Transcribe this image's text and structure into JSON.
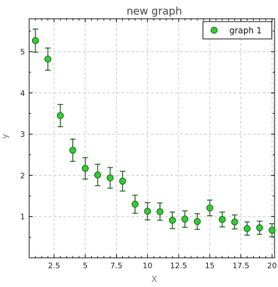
{
  "chart_data": {
    "type": "scatter",
    "title": "new graph",
    "xlabel": "X",
    "ylabel": "y",
    "xlim": [
      0.5,
      20.2
    ],
    "ylim": [
      0,
      5.8
    ],
    "x_ticks": [
      2.5,
      5,
      7.5,
      10,
      12.5,
      15,
      17.5,
      20
    ],
    "x_tick_labels": [
      "2.5",
      "5",
      "7.5",
      "10",
      "12.5",
      "15",
      "17.5",
      "20"
    ],
    "y_ticks": [
      1,
      2,
      3,
      4,
      5
    ],
    "y_tick_labels": [
      "1",
      "2",
      "3",
      "4",
      "5"
    ],
    "grid": true,
    "legend": {
      "placement": "top-right",
      "entries": [
        "graph 1"
      ]
    },
    "series": [
      {
        "name": "graph 1",
        "marker_color": "#33cc33",
        "edge_color": "#1a5c1a",
        "error_color": "#1a5c1a",
        "x": [
          1,
          2,
          3,
          4,
          5,
          6,
          7,
          8,
          9,
          10,
          11,
          12,
          13,
          14,
          15,
          16,
          17,
          18,
          19,
          20
        ],
        "y": [
          5.27,
          4.82,
          3.45,
          2.61,
          2.17,
          2.01,
          1.94,
          1.86,
          1.3,
          1.13,
          1.12,
          0.91,
          0.94,
          0.88,
          1.21,
          0.93,
          0.87,
          0.71,
          0.73,
          0.67
        ],
        "yerr": [
          0.28,
          0.27,
          0.27,
          0.27,
          0.26,
          0.26,
          0.25,
          0.24,
          0.22,
          0.21,
          0.21,
          0.2,
          0.2,
          0.19,
          0.19,
          0.18,
          0.17,
          0.16,
          0.16,
          0.16
        ]
      }
    ]
  }
}
